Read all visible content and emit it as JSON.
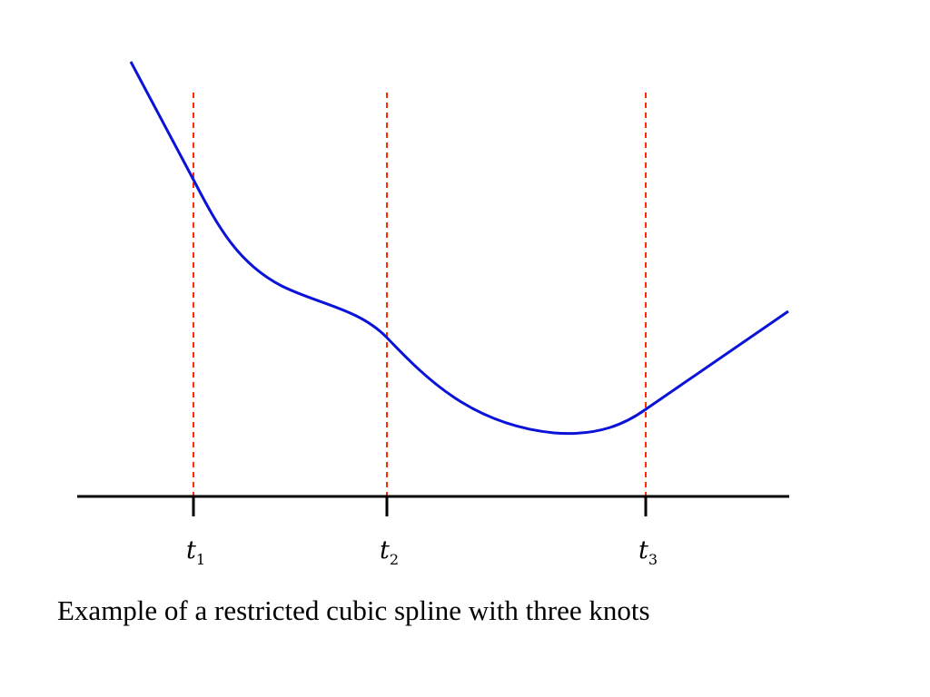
{
  "caption": "Example of a restricted cubic spline with three knots",
  "knots": [
    {
      "symbol": "t",
      "subscript": "1"
    },
    {
      "symbol": "t",
      "subscript": "2"
    },
    {
      "symbol": "t",
      "subscript": "3"
    }
  ],
  "colors": {
    "curve": "#0b13d8",
    "knot_line": "#ff2a00",
    "axis": "#000000"
  }
}
